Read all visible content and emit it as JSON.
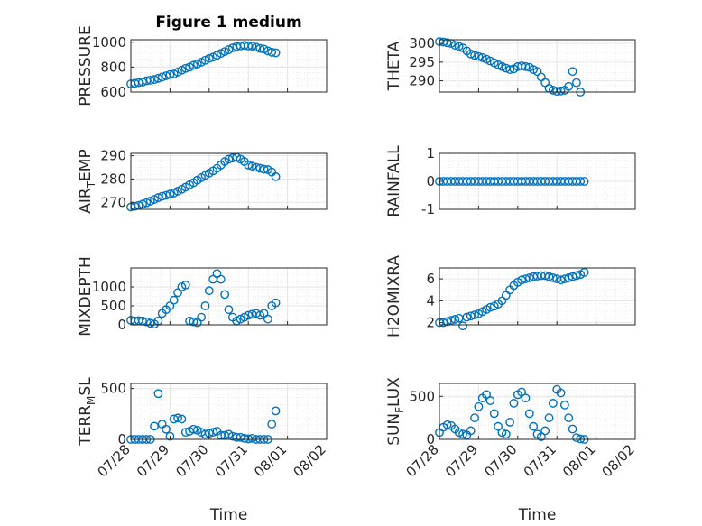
{
  "figure_title": "Figure 1 medium",
  "colors": {
    "marker": "#0072BD",
    "axis": "#262626",
    "grid": "#dcdcdc"
  },
  "chart_data": [
    {
      "type": "scatter",
      "ylabel": "PRESSURE",
      "ylabel_sub": null,
      "title": "Figure 1 medium",
      "xlabel": "",
      "xticklabels": [],
      "yticks": [
        600,
        800,
        1000
      ],
      "yticklabels": [
        "600",
        "800",
        "1000"
      ],
      "ylim": [
        600,
        1020
      ],
      "grid": true,
      "x": [
        0,
        0.1,
        0.2,
        0.3,
        0.4,
        0.5,
        0.6,
        0.7,
        0.8,
        0.9,
        1.0,
        1.1,
        1.2,
        1.3,
        1.4,
        1.5,
        1.6,
        1.7,
        1.8,
        1.9,
        2.0,
        2.1,
        2.2,
        2.3,
        2.4,
        2.5,
        2.6,
        2.7,
        2.8,
        2.9,
        3.0,
        3.1,
        3.2,
        3.3,
        3.4,
        3.5,
        3.6,
        3.7
      ],
      "y": [
        665,
        670,
        675,
        680,
        690,
        695,
        700,
        710,
        720,
        730,
        740,
        745,
        760,
        775,
        790,
        800,
        815,
        825,
        840,
        855,
        870,
        880,
        895,
        910,
        925,
        940,
        955,
        965,
        970,
        975,
        970,
        968,
        960,
        950,
        945,
        930,
        920,
        915
      ]
    },
    {
      "type": "scatter",
      "ylabel": "THETA",
      "ylabel_sub": null,
      "xlabel": "",
      "xticklabels": [],
      "yticks": [
        290,
        295,
        300
      ],
      "yticklabels": [
        "290",
        "295",
        "300"
      ],
      "ylim": [
        287,
        301
      ],
      "grid": true,
      "x": [
        0,
        0.1,
        0.2,
        0.3,
        0.4,
        0.5,
        0.6,
        0.7,
        0.8,
        0.9,
        1.0,
        1.1,
        1.2,
        1.3,
        1.4,
        1.5,
        1.6,
        1.7,
        1.8,
        1.9,
        2.0,
        2.1,
        2.2,
        2.3,
        2.4,
        2.5,
        2.6,
        2.7,
        2.8,
        2.9,
        3.0,
        3.1,
        3.2,
        3.3,
        3.4,
        3.5,
        3.6
      ],
      "y": [
        300.5,
        300.4,
        300.2,
        300,
        299.5,
        299.2,
        298.8,
        298,
        297.2,
        296.8,
        296.5,
        296.2,
        295.8,
        295.3,
        294.8,
        294.3,
        293.8,
        293.4,
        293,
        293.2,
        293.8,
        294,
        293.8,
        293.6,
        293,
        292.5,
        291,
        289.5,
        288,
        287.5,
        287.2,
        287.3,
        287.5,
        288.5,
        292.5,
        289.5,
        287
      ]
    },
    {
      "type": "scatter",
      "ylabel": "AIR",
      "ylabel_sub": "T",
      "ylabel_after": "EMP",
      "xlabel": "",
      "xticklabels": [],
      "yticks": [
        270,
        280,
        290
      ],
      "yticklabels": [
        "270",
        "280",
        "290"
      ],
      "ylim": [
        267,
        291
      ],
      "grid": true,
      "x": [
        0,
        0.1,
        0.2,
        0.3,
        0.4,
        0.5,
        0.6,
        0.7,
        0.8,
        0.9,
        1.0,
        1.1,
        1.2,
        1.3,
        1.4,
        1.5,
        1.6,
        1.7,
        1.8,
        1.9,
        2.0,
        2.1,
        2.2,
        2.3,
        2.4,
        2.5,
        2.6,
        2.7,
        2.8,
        2.9,
        3.0,
        3.1,
        3.2,
        3.3,
        3.4,
        3.5,
        3.6,
        3.7
      ],
      "y": [
        268,
        268.3,
        268.7,
        269.2,
        269.8,
        270.5,
        271.2,
        272,
        272.6,
        273,
        273.5,
        274,
        274.8,
        275.6,
        276.5,
        277.5,
        278.4,
        279.5,
        280.6,
        281.6,
        282.5,
        283.5,
        284.6,
        286,
        287.5,
        288.5,
        289,
        289.3,
        288.5,
        287.5,
        286,
        285.5,
        285,
        284.6,
        284.2,
        284,
        283,
        281
      ]
    },
    {
      "type": "scatter",
      "ylabel": "RAINFALL",
      "ylabel_sub": null,
      "xlabel": "",
      "xticklabels": [],
      "yticks": [
        -1,
        0,
        1
      ],
      "yticklabels": [
        "-1",
        "0",
        "1"
      ],
      "ylim": [
        -1,
        1
      ],
      "grid": true,
      "x": [
        0,
        0.1,
        0.2,
        0.3,
        0.4,
        0.5,
        0.6,
        0.7,
        0.8,
        0.9,
        1.0,
        1.1,
        1.2,
        1.3,
        1.4,
        1.5,
        1.6,
        1.7,
        1.8,
        1.9,
        2.0,
        2.1,
        2.2,
        2.3,
        2.4,
        2.5,
        2.6,
        2.7,
        2.8,
        2.9,
        3.0,
        3.1,
        3.2,
        3.3,
        3.4,
        3.5,
        3.6,
        3.7
      ],
      "y": [
        0,
        0,
        0,
        0,
        0,
        0,
        0,
        0,
        0,
        0,
        0,
        0,
        0,
        0,
        0,
        0,
        0,
        0,
        0,
        0,
        0,
        0,
        0,
        0,
        0,
        0,
        0,
        0,
        0,
        0,
        0,
        0,
        0,
        0,
        0,
        0,
        0,
        0
      ]
    },
    {
      "type": "scatter",
      "ylabel": "MIXDEPTH",
      "ylabel_sub": null,
      "xlabel": "",
      "xticklabels": [],
      "yticks": [
        0,
        500,
        1000
      ],
      "yticklabels": [
        "0",
        "500",
        "1000"
      ],
      "ylim": [
        0,
        1500
      ],
      "grid": true,
      "x": [
        0,
        0.1,
        0.2,
        0.3,
        0.4,
        0.5,
        0.6,
        0.7,
        0.8,
        0.9,
        1.0,
        1.1,
        1.2,
        1.3,
        1.4,
        1.5,
        1.6,
        1.7,
        1.8,
        1.9,
        2.0,
        2.1,
        2.2,
        2.3,
        2.4,
        2.5,
        2.6,
        2.7,
        2.8,
        2.9,
        3.0,
        3.1,
        3.2,
        3.3,
        3.4,
        3.5,
        3.6,
        3.7
      ],
      "y": [
        120,
        100,
        110,
        100,
        80,
        40,
        20,
        100,
        300,
        400,
        500,
        650,
        850,
        1000,
        1050,
        100,
        80,
        60,
        200,
        500,
        900,
        1200,
        1350,
        1200,
        800,
        400,
        200,
        100,
        150,
        200,
        250,
        280,
        300,
        250,
        300,
        150,
        500,
        580
      ]
    },
    {
      "type": "scatter",
      "ylabel": "H2OMIXRA",
      "ylabel_sub": null,
      "xlabel": "",
      "xticklabels": [],
      "yticks": [
        2,
        4,
        6
      ],
      "yticklabels": [
        "2",
        "4",
        "6"
      ],
      "ylim": [
        1.8,
        7
      ],
      "grid": true,
      "x": [
        0,
        0.1,
        0.2,
        0.3,
        0.4,
        0.5,
        0.6,
        0.7,
        0.8,
        0.9,
        1.0,
        1.1,
        1.2,
        1.3,
        1.4,
        1.5,
        1.6,
        1.7,
        1.8,
        1.9,
        2.0,
        2.1,
        2.2,
        2.3,
        2.4,
        2.5,
        2.6,
        2.7,
        2.8,
        2.9,
        3.0,
        3.1,
        3.2,
        3.3,
        3.4,
        3.5,
        3.6,
        3.7
      ],
      "y": [
        2,
        2,
        2.1,
        2.2,
        2.3,
        2.4,
        1.7,
        2.5,
        2.6,
        2.7,
        2.8,
        3,
        3.2,
        3.4,
        3.5,
        3.7,
        4,
        4.5,
        5,
        5.4,
        5.7,
        5.9,
        6,
        6.1,
        6.2,
        6.25,
        6.3,
        6.3,
        6.2,
        6.1,
        6,
        5.9,
        6,
        6.1,
        6.2,
        6.3,
        6.4,
        6.6
      ]
    },
    {
      "type": "scatter",
      "ylabel": "TERR",
      "ylabel_sub": "M",
      "ylabel_after": "SL",
      "xlabel": "Time",
      "xticklabels": [
        "07/28",
        "07/29",
        "07/30",
        "07/31",
        "08/01",
        "08/02"
      ],
      "yticks": [
        0,
        500
      ],
      "yticklabels": [
        "0",
        "500"
      ],
      "ylim": [
        0,
        550
      ],
      "grid": true,
      "x": [
        0,
        0.1,
        0.2,
        0.3,
        0.4,
        0.5,
        0.6,
        0.7,
        0.8,
        0.9,
        1.0,
        1.1,
        1.2,
        1.3,
        1.4,
        1.5,
        1.6,
        1.7,
        1.8,
        1.9,
        2.0,
        2.1,
        2.2,
        2.3,
        2.4,
        2.5,
        2.6,
        2.7,
        2.8,
        2.9,
        3.0,
        3.1,
        3.2,
        3.3,
        3.4,
        3.5,
        3.6,
        3.7
      ],
      "y": [
        0,
        0,
        0,
        0,
        0,
        0,
        130,
        450,
        150,
        100,
        30,
        200,
        210,
        200,
        70,
        80,
        100,
        90,
        70,
        50,
        60,
        70,
        80,
        40,
        40,
        50,
        30,
        20,
        20,
        10,
        5,
        10,
        0,
        0,
        0,
        0,
        150,
        280
      ]
    },
    {
      "type": "scatter",
      "ylabel": "SUN",
      "ylabel_sub": "F",
      "ylabel_after": "LUX",
      "xlabel": "Time",
      "xticklabels": [
        "07/28",
        "07/29",
        "07/30",
        "07/31",
        "08/01",
        "08/02"
      ],
      "yticks": [
        0,
        500
      ],
      "yticklabels": [
        "0",
        "500"
      ],
      "ylim": [
        0,
        650
      ],
      "grid": true,
      "x": [
        0,
        0.1,
        0.2,
        0.3,
        0.4,
        0.5,
        0.6,
        0.7,
        0.8,
        0.9,
        1.0,
        1.1,
        1.2,
        1.3,
        1.4,
        1.5,
        1.6,
        1.7,
        1.8,
        1.9,
        2.0,
        2.1,
        2.2,
        2.3,
        2.4,
        2.5,
        2.6,
        2.7,
        2.8,
        2.9,
        3.0,
        3.1,
        3.2,
        3.3,
        3.4,
        3.5,
        3.6,
        3.7
      ],
      "y": [
        80,
        140,
        170,
        160,
        120,
        80,
        60,
        50,
        100,
        250,
        380,
        480,
        520,
        450,
        300,
        150,
        80,
        60,
        200,
        420,
        520,
        550,
        480,
        300,
        150,
        60,
        30,
        100,
        250,
        420,
        580,
        540,
        400,
        250,
        120,
        20,
        5,
        0
      ]
    }
  ]
}
